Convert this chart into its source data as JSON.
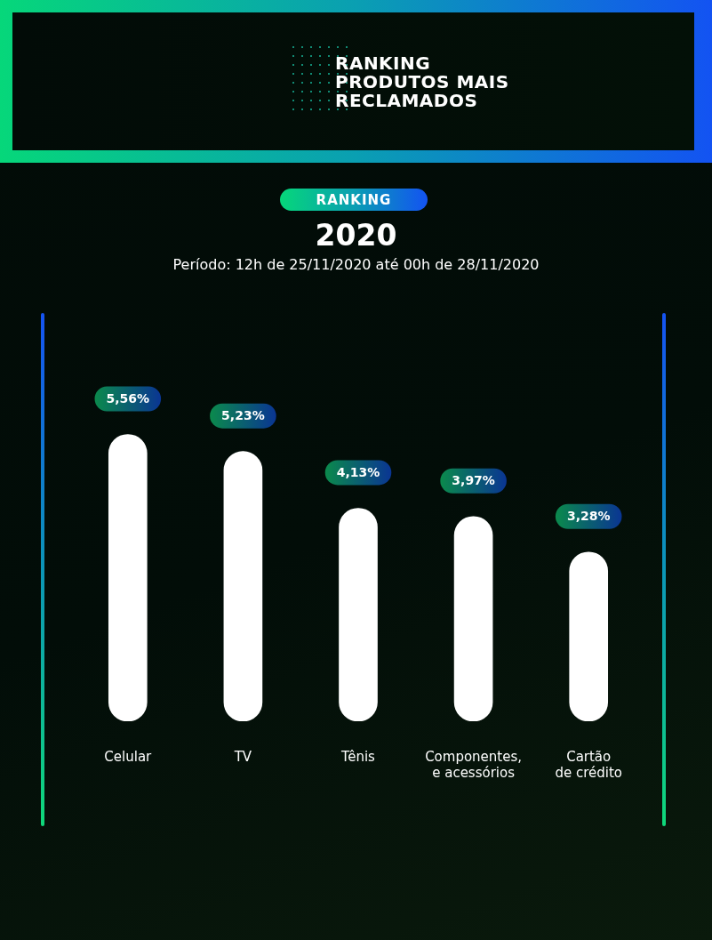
{
  "chart_data": {
    "type": "bar",
    "title": "RANKING PRODUTOS MAIS RECLAMADOS",
    "subtitle": "2020",
    "annotations": [
      "RANKING",
      "Período: 12h de 25/11/2020 até 00h de 28/11/2020"
    ],
    "categories": [
      "Celular",
      "TV",
      "Tênis",
      "Componentes, e acessórios",
      "Cartão de crédito"
    ],
    "values": [
      5.56,
      5.23,
      4.13,
      3.97,
      3.28
    ],
    "value_labels": [
      "5,56%",
      "5,23%",
      "4,13%",
      "3,97%",
      "3,28%"
    ],
    "color": "#ffffff",
    "legend": false,
    "tick_labels": "x"
  }
}
